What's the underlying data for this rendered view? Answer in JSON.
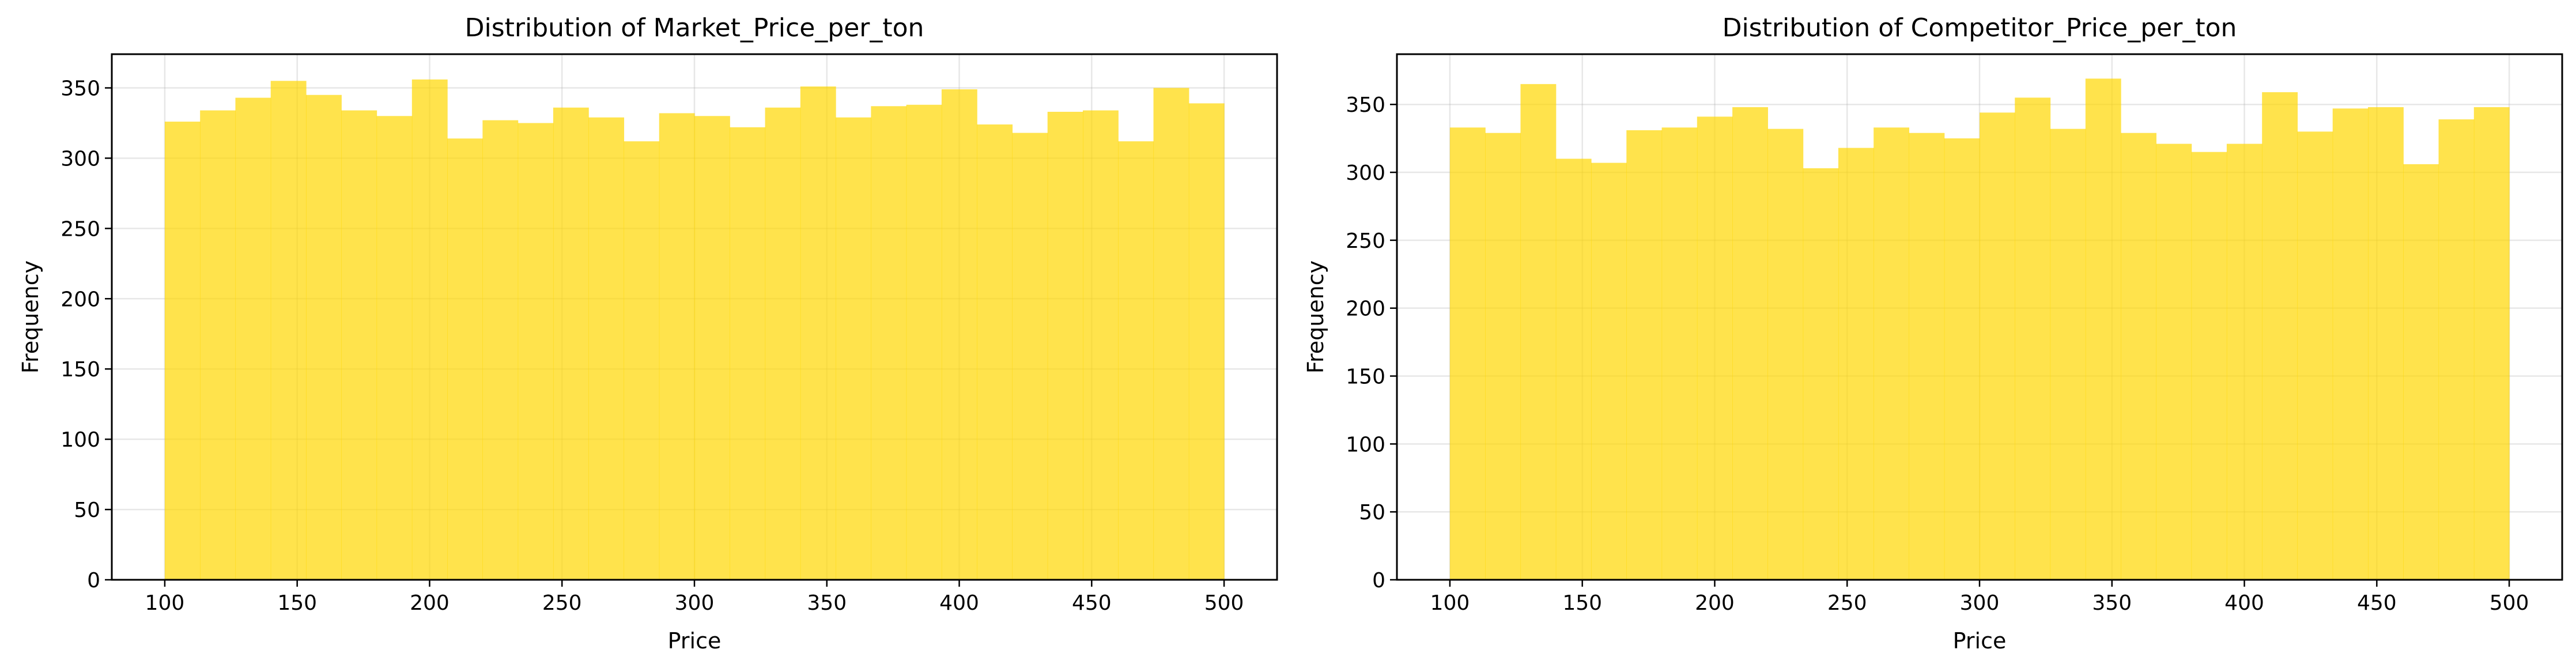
{
  "chart_data": [
    {
      "type": "bar",
      "title": "Distribution of Market_Price_per_ton",
      "xlabel": "Price",
      "ylabel": "Frequency",
      "bin_edges": [
        100,
        113.33,
        126.67,
        140,
        153.33,
        166.67,
        180,
        193.33,
        206.67,
        220,
        233.33,
        246.67,
        260,
        273.33,
        286.67,
        300,
        313.33,
        326.67,
        340,
        353.33,
        366.67,
        380,
        393.33,
        406.67,
        420,
        433.33,
        446.67,
        460,
        473.33,
        486.67,
        500
      ],
      "values": [
        326,
        334,
        343,
        355,
        345,
        334,
        330,
        356,
        314,
        327,
        325,
        336,
        329,
        312,
        332,
        330,
        322,
        336,
        351,
        329,
        337,
        338,
        349,
        324,
        318,
        333,
        334,
        312,
        350,
        339
      ],
      "xlim": [
        80,
        520
      ],
      "ylim": [
        0,
        374
      ],
      "xticks": [
        100,
        150,
        200,
        250,
        300,
        350,
        400,
        450,
        500
      ],
      "yticks": [
        0,
        50,
        100,
        150,
        200,
        250,
        300,
        350
      ],
      "grid": true,
      "bar_color": "#FFD700",
      "bar_alpha": 0.7
    },
    {
      "type": "bar",
      "title": "Distribution of Competitor_Price_per_ton",
      "xlabel": "Price",
      "ylabel": "Frequency",
      "bin_edges": [
        100,
        113.33,
        126.67,
        140,
        153.33,
        166.67,
        180,
        193.33,
        206.67,
        220,
        233.33,
        246.67,
        260,
        273.33,
        286.67,
        300,
        313.33,
        326.67,
        340,
        353.33,
        366.67,
        380,
        393.33,
        406.67,
        420,
        433.33,
        446.67,
        460,
        473.33,
        486.67,
        500
      ],
      "values": [
        333,
        329,
        365,
        310,
        307,
        331,
        333,
        341,
        348,
        332,
        303,
        318,
        333,
        329,
        325,
        344,
        355,
        332,
        369,
        329,
        321,
        315,
        321,
        359,
        330,
        347,
        348,
        306,
        339,
        348
      ],
      "xlim": [
        80,
        520
      ],
      "ylim": [
        0,
        387
      ],
      "xticks": [
        100,
        150,
        200,
        250,
        300,
        350,
        400,
        450,
        500
      ],
      "yticks": [
        0,
        50,
        100,
        150,
        200,
        250,
        300,
        350
      ],
      "grid": true,
      "bar_color": "#FFD700",
      "bar_alpha": 0.7
    }
  ]
}
